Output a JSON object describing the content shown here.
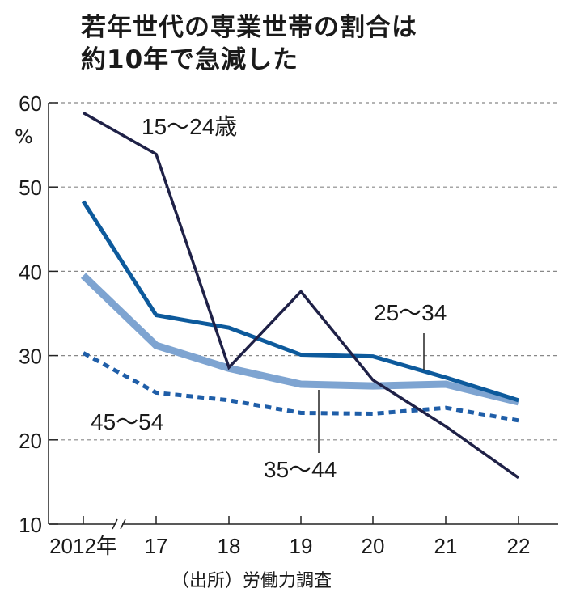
{
  "title_lines": [
    "若年世代の専業世帯の割合は",
    "約10年で急減した"
  ],
  "source": "（出所）労働力調査",
  "chart_data": {
    "type": "line",
    "title": "若年世代の専業世帯の割合は約10年で急減した",
    "ylabel": "%",
    "xlabel": "",
    "categories": [
      "2012年",
      "17",
      "18",
      "19",
      "20",
      "21",
      "22"
    ],
    "ylim": [
      10,
      60
    ],
    "yticks": [
      10,
      20,
      30,
      40,
      50,
      60
    ],
    "grid": true,
    "axis_break": "x-axis between 2012 and 17",
    "series": [
      {
        "name": "15～24歳",
        "color": "#1f2147",
        "style": "solid-thin",
        "values": [
          58.8,
          53.9,
          28.6,
          37.6,
          27.1,
          21.6,
          15.5
        ]
      },
      {
        "name": "25～34",
        "color": "#0d5a9c",
        "style": "solid",
        "values": [
          48.3,
          34.8,
          33.3,
          30.1,
          29.9,
          27.4,
          24.7
        ]
      },
      {
        "name": "35～44",
        "color": "#7ea4d1",
        "style": "solid-thick",
        "values": [
          39.5,
          31.2,
          28.5,
          26.6,
          26.4,
          26.6,
          24.5
        ]
      },
      {
        "name": "45～54",
        "color": "#1f5ea8",
        "style": "dashed",
        "values": [
          30.3,
          25.6,
          24.7,
          23.2,
          23.1,
          23.8,
          22.3
        ]
      }
    ]
  }
}
